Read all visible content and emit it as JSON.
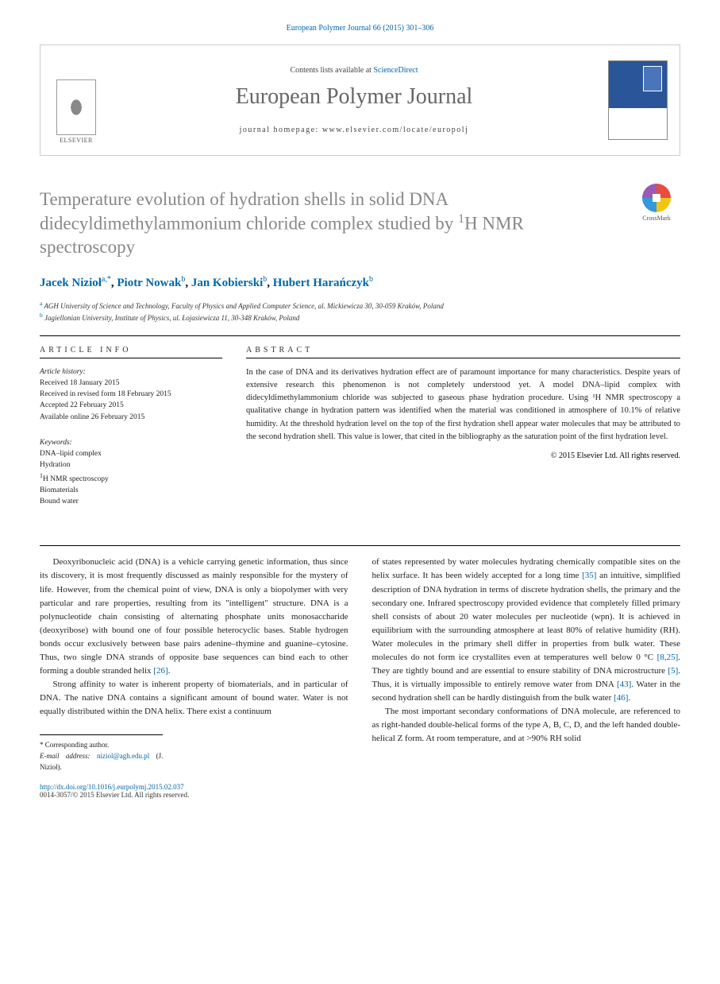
{
  "header": {
    "citation": "European Polymer Journal 66 (2015) 301–306",
    "contents_prefix": "Contents lists available at ",
    "contents_link": "ScienceDirect",
    "journal_title": "European Polymer Journal",
    "homepage_prefix": "journal homepage: ",
    "homepage_url": "www.elsevier.com/locate/europolj",
    "publisher": "ELSEVIER"
  },
  "article": {
    "title_line1": "Temperature evolution of hydration shells in solid DNA didecyldimethylammonium chloride complex studied by ",
    "title_nmr": "H NMR spectroscopy",
    "crossmark": "CrossMark"
  },
  "authors": {
    "a1_name": "Jacek Nizioł",
    "a1_sup": "a,",
    "a1_corr": "*",
    "a2_name": "Piotr Nowak",
    "a2_sup": "b",
    "a3_name": "Jan Kobierski",
    "a3_sup": "b",
    "a4_name": "Hubert Harańczyk",
    "a4_sup": "b"
  },
  "affiliations": {
    "a": "AGH University of Science and Technology, Faculty of Physics and Applied Computer Science, al. Mickiewicza 30, 30-059 Kraków, Poland",
    "b": "Jagiellonian University, Institute of Physics, ul. Łojasiewicza 11, 30-348 Kraków, Poland"
  },
  "info": {
    "heading": "article info",
    "history_label": "Article history:",
    "received": "Received 18 January 2015",
    "revised": "Received in revised form 18 February 2015",
    "accepted": "Accepted 22 February 2015",
    "online": "Available online 26 February 2015",
    "keywords_label": "Keywords:",
    "kw1": "DNA–lipid complex",
    "kw2": "Hydration",
    "kw3_pre": "H NMR spectroscopy",
    "kw4": "Biomaterials",
    "kw5": "Bound water"
  },
  "abstract": {
    "heading": "abstract",
    "text": "In the case of DNA and its derivatives hydration effect are of paramount importance for many characteristics. Despite years of extensive research this phenomenon is not completely understood yet. A model DNA–lipid complex with didecyldimethylammonium chloride was subjected to gaseous phase hydration procedure. Using ¹H NMR spectroscopy a qualitative change in hydration pattern was identified when the material was conditioned in atmosphere of 10.1% of relative humidity. At the threshold hydration level on the top of the first hydration shell appear water molecules that may be attributed to the second hydration shell. This value is lower, that cited in the bibliography as the saturation point of the first hydration level.",
    "copyright": "© 2015 Elsevier Ltd. All rights reserved."
  },
  "body": {
    "p1": "Deoxyribonucleic acid (DNA) is a vehicle carrying genetic information, thus since its discovery, it is most frequently discussed as mainly responsible for the mystery of life. However, from the chemical point of view, DNA is only a biopolymer with very particular and rare properties, resulting from its \"intelligent\" structure. DNA is a polynucleotide chain consisting of alternating phosphate units monosaccharide (deoxyribose) with bound one of four possible heterocyclic bases. Stable hydrogen bonds occur exclusively between base pairs adenine–thymine and guanine–cytosine. Thus, two single DNA strands of opposite base sequences can bind each to other forming a double stranded helix ",
    "p1_ref": "[26]",
    "p1_end": ".",
    "p2": "Strong affinity to water is inherent property of biomaterials, and in particular of DNA. The native DNA contains a significant amount of bound water. Water is not equally distributed within the DNA helix. There exist a continuum",
    "p3a": "of states represented by water molecules hydrating chemically compatible sites on the helix surface. It has been widely accepted for a long time ",
    "p3_ref1": "[35]",
    "p3b": " an intuitive, simplified description of DNA hydration in terms of discrete hydration shells, the primary and the secondary one. Infrared spectroscopy provided evidence that completely filled primary shell consists of about 20 water molecules per nucleotide (wpn). It is achieved in equilibrium with the surrounding atmosphere at least 80% of relative humidity (RH). Water molecules in the primary shell differ in properties from bulk water. These molecules do not form ice crystallites even at temperatures well below 0 °C ",
    "p3_ref2": "[8,25]",
    "p3c": ". They are tightly bound and are essential to ensure stability of DNA microstructure ",
    "p3_ref3": "[5]",
    "p3d": ". Thus, it is virtually impossible to entirely remove water from DNA ",
    "p3_ref4": "[43]",
    "p3e": ". Water in the second hydration shell can be hardly distinguish from the bulk water ",
    "p3_ref5": "[46]",
    "p3f": ".",
    "p4": "The most important secondary conformations of DNA molecule, are referenced to as right-handed double-helical forms of the type A, B, C, D, and the left handed double-helical Z form. At room temperature, and at >90% RH solid"
  },
  "footnotes": {
    "corr_label": "Corresponding author.",
    "email_label": "E-mail address:",
    "email": "niziol@agh.edu.pl",
    "email_who": "(J. Nizioł)."
  },
  "bottom": {
    "doi": "http://dx.doi.org/10.1016/j.eurpolymj.2015.02.037",
    "issn_line": "0014-3057/© 2015 Elsevier Ltd. All rights reserved."
  },
  "colors": {
    "link": "#0066aa",
    "title_gray": "#888888",
    "journal_gray": "#666666"
  }
}
